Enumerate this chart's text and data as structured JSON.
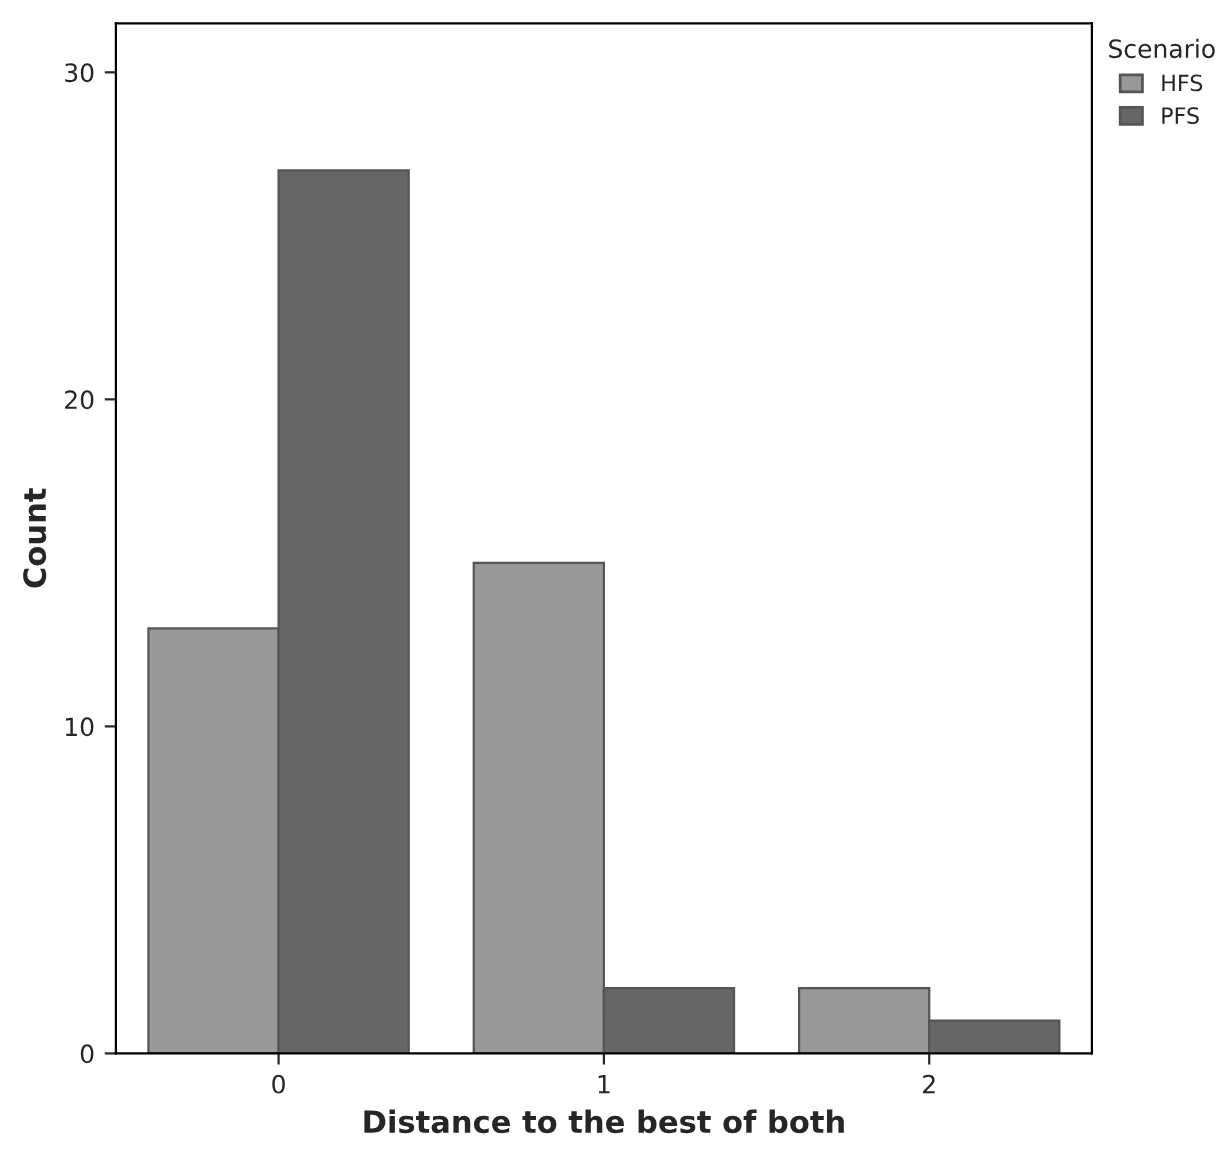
{
  "chart_data": {
    "type": "bar",
    "xlabel": "Distance to the best of both",
    "ylabel": "Count",
    "legend_title": "Scenario",
    "categories": [
      "0",
      "1",
      "2"
    ],
    "series": [
      {
        "name": "HFS",
        "color": "#999999",
        "values": [
          13,
          15,
          2
        ]
      },
      {
        "name": "PFS",
        "color": "#666666",
        "values": [
          27,
          2,
          1
        ]
      }
    ],
    "ylim": [
      0,
      31.5
    ],
    "yticks": [
      0,
      10,
      20,
      30
    ],
    "grid": false,
    "legend": "top right"
  }
}
